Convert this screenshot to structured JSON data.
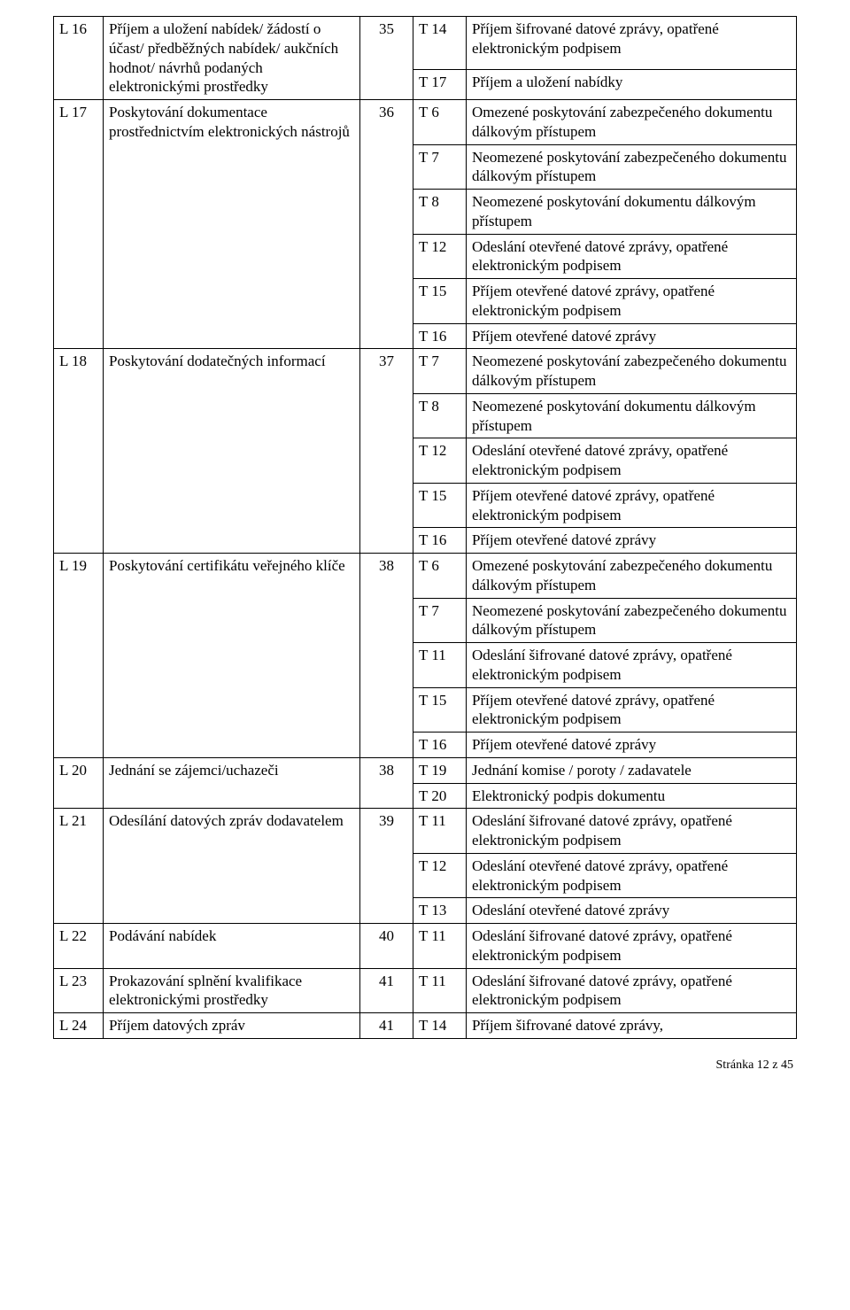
{
  "rows": [
    {
      "c1": "L 16",
      "c2": "Příjem a uložení nabídek/ žádostí o účast/ předběžných nabídek/ aukčních hodnot/ návrhů podaných elektronickými prostředky",
      "c3": "35",
      "subs": [
        {
          "c4": "T 14",
          "c5": "Příjem šifrované datové zprávy, opatřené elektronickým podpisem"
        },
        {
          "c4": "T 17",
          "c5": "Příjem a uložení nabídky"
        }
      ]
    },
    {
      "c1": "L 17",
      "c2": "Poskytování dokumentace prostřednictvím elektronických nástrojů",
      "c3": "36",
      "subs": [
        {
          "c4": "T 6",
          "c5": "Omezené poskytování zabezpečeného dokumentu dálkovým přístupem"
        },
        {
          "c4": "T 7",
          "c5": "Neomezené poskytování zabezpečeného dokumentu dálkovým přístupem"
        },
        {
          "c4": "T 8",
          "c5": "Neomezené poskytování dokumentu dálkovým přístupem"
        },
        {
          "c4": "T 12",
          "c5": "Odeslání otevřené datové zprávy, opatřené elektronickým podpisem"
        },
        {
          "c4": "T 15",
          "c5": "Příjem otevřené datové zprávy, opatřené elektronickým podpisem"
        },
        {
          "c4": "T 16",
          "c5": "Příjem otevřené datové zprávy"
        }
      ]
    },
    {
      "c1": "L 18",
      "c2": "Poskytování dodatečných informací",
      "c3": "37",
      "subs": [
        {
          "c4": "T 7",
          "c5": "Neomezené poskytování zabezpečeného dokumentu dálkovým přístupem"
        },
        {
          "c4": "T 8",
          "c5": "Neomezené poskytování dokumentu dálkovým přístupem"
        },
        {
          "c4": "T 12",
          "c5": "Odeslání otevřené datové zprávy, opatřené elektronickým podpisem"
        },
        {
          "c4": "T 15",
          "c5": "Příjem otevřené datové zprávy, opatřené elektronickým podpisem"
        },
        {
          "c4": "T 16",
          "c5": "Příjem otevřené datové zprávy"
        }
      ]
    },
    {
      "c1": "L 19",
      "c2": "Poskytování certifikátu veřejného klíče",
      "c3": "38",
      "subs": [
        {
          "c4": "T 6",
          "c5": "Omezené poskytování zabezpečeného dokumentu dálkovým přístupem"
        },
        {
          "c4": "T 7",
          "c5": "Neomezené poskytování zabezpečeného dokumentu dálkovým přístupem"
        },
        {
          "c4": "T 11",
          "c5": "Odeslání šifrované datové zprávy, opatřené elektronickým podpisem"
        },
        {
          "c4": "T 15",
          "c5": "Příjem otevřené datové zprávy, opatřené elektronickým podpisem"
        },
        {
          "c4": "T 16",
          "c5": "Příjem otevřené datové zprávy"
        }
      ]
    },
    {
      "c1": "L 20",
      "c2": "Jednání se zájemci/uchazeči",
      "c3": "38",
      "subs": [
        {
          "c4": "T 19",
          "c5": "Jednání komise / poroty / zadavatele",
          "c2span": 1
        },
        {
          "c4": "T 20",
          "c5": "Elektronický podpis dokumentu"
        }
      ]
    },
    {
      "c1": "L 21",
      "c2": "Odesílání datových zpráv dodavatelem",
      "c3": "39",
      "subs": [
        {
          "c4": "T 11",
          "c5": "Odeslání šifrované datové zprávy, opatřené elektronickým podpisem"
        },
        {
          "c4": "T 12",
          "c5": "Odeslání otevřené datové zprávy, opatřené elektronickým podpisem"
        },
        {
          "c4": "T 13",
          "c5": "Odeslání otevřené datové zprávy"
        }
      ]
    },
    {
      "c1": "L 22",
      "c2": "Podávání nabídek",
      "c3": "40",
      "subs": [
        {
          "c4": "T 11",
          "c5": "Odeslání šifrované datové zprávy, opatřené elektronickým podpisem"
        }
      ]
    },
    {
      "c1": "L 23",
      "c2": "Prokazování splnění kvalifikace elektronickými prostředky",
      "c3": "41",
      "subs": [
        {
          "c4": "T 11",
          "c5": "Odeslání šifrované datové zprávy, opatřené elektronickým podpisem"
        }
      ]
    },
    {
      "c1": "L 24",
      "c2": "Příjem datových zpráv",
      "c3": "41",
      "subs": [
        {
          "c4": "T 14",
          "c5": "Příjem šifrované datové zprávy,"
        }
      ]
    }
  ],
  "footer": "Stránka 12 z 45"
}
